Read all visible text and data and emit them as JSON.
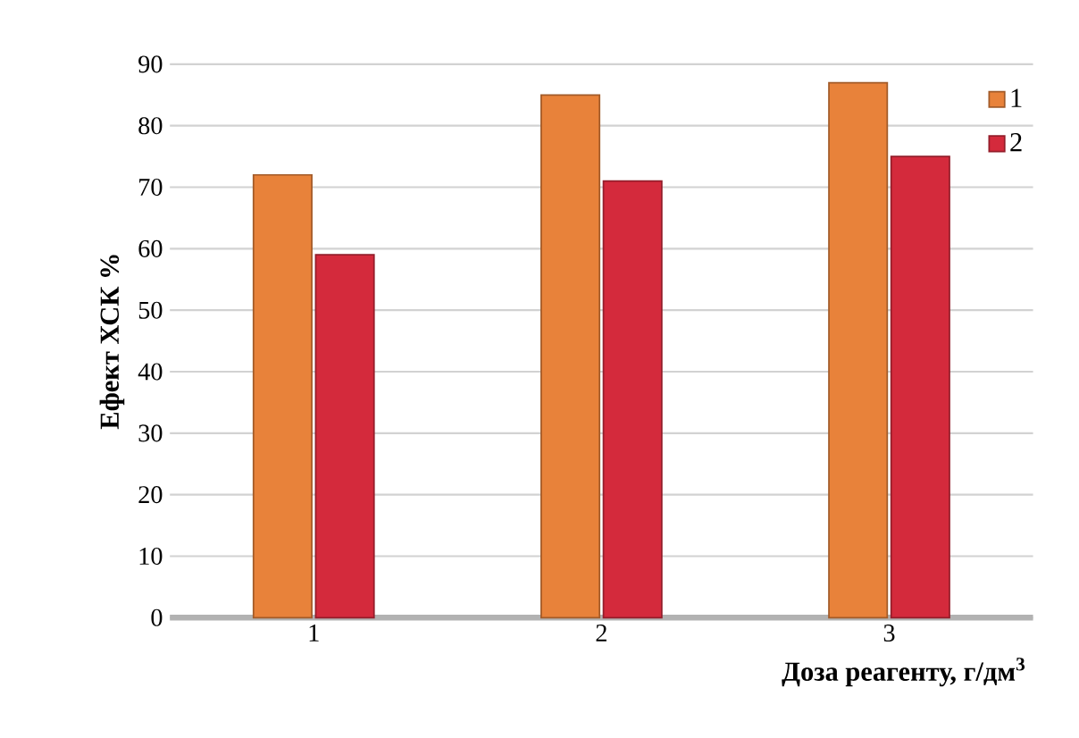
{
  "chart_data": {
    "type": "bar",
    "xlabel": "Доза реагенту, г/дм$^{3}$",
    "ylabel": "Ефект ХСК  %",
    "categories": [
      "1",
      "2",
      "3"
    ],
    "series": [
      {
        "name": "1",
        "color": "#e8823a",
        "values": [
          72,
          85,
          87
        ]
      },
      {
        "name": "2",
        "color": "#d42a3c",
        "values": [
          59,
          71,
          75
        ]
      }
    ],
    "ylim": [
      0,
      90
    ],
    "yticks": [
      0,
      10,
      20,
      30,
      40,
      50,
      60,
      70,
      80,
      90
    ],
    "grid": "y",
    "legend": "top right"
  }
}
